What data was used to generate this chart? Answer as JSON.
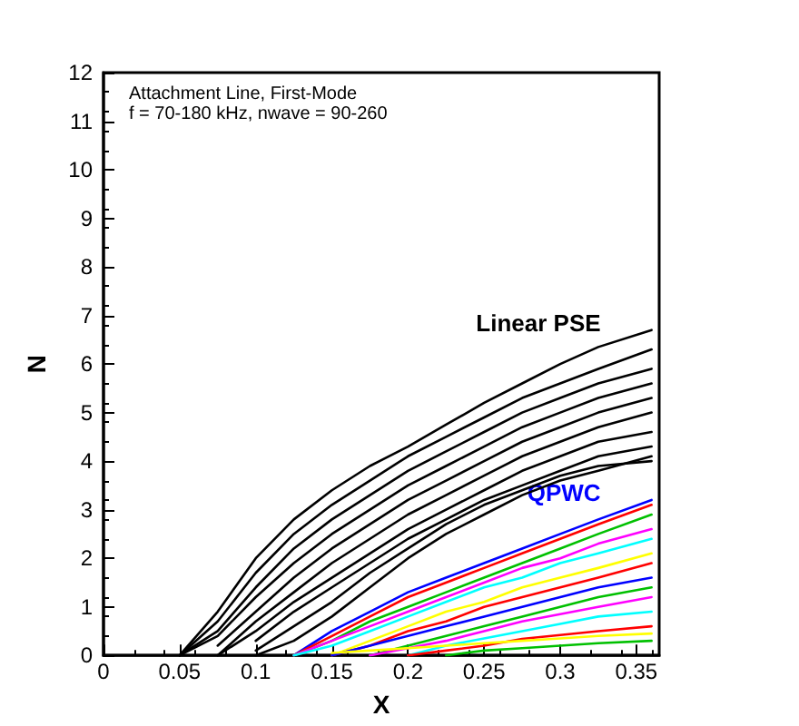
{
  "chart_data": {
    "type": "line",
    "title": "Attachment Line, First-Mode",
    "subtitle": "f = 70-180 kHz, nwave = 90-260",
    "xlabel": "X",
    "ylabel": "N",
    "x": [
      0.05,
      0.075,
      0.1,
      0.125,
      0.15,
      0.175,
      0.2,
      0.225,
      0.25,
      0.275,
      0.3,
      0.325,
      0.36
    ],
    "series": [
      {
        "name": "Linear PSE",
        "color": "#000000",
        "values": [
          0,
          0.9,
          2.0,
          2.8,
          3.4,
          3.9,
          4.3,
          4.75,
          5.2,
          5.6,
          6.0,
          6.35,
          6.7
        ]
      },
      {
        "color": "#000000",
        "values": [
          0,
          0.7,
          1.7,
          2.5,
          3.1,
          3.6,
          4.1,
          4.5,
          4.9,
          5.3,
          5.6,
          5.9,
          6.3
        ]
      },
      {
        "color": "#000000",
        "values": [
          0,
          0.5,
          1.4,
          2.2,
          2.8,
          3.3,
          3.8,
          4.2,
          4.6,
          5.0,
          5.3,
          5.6,
          5.9
        ]
      },
      {
        "color": "#000000",
        "values": [
          0,
          0.4,
          1.2,
          1.9,
          2.5,
          3.0,
          3.5,
          3.9,
          4.3,
          4.7,
          5.0,
          5.3,
          5.6
        ]
      },
      {
        "color": "#000000",
        "values": [
          null,
          0.2,
          0.9,
          1.6,
          2.2,
          2.7,
          3.2,
          3.6,
          4.0,
          4.4,
          4.7,
          5.0,
          5.3
        ]
      },
      {
        "color": "#000000",
        "values": [
          null,
          0,
          0.7,
          1.3,
          1.9,
          2.4,
          2.9,
          3.3,
          3.7,
          4.1,
          4.4,
          4.7,
          5.0
        ]
      },
      {
        "color": "#000000",
        "values": [
          null,
          0,
          0.5,
          1.1,
          1.6,
          2.1,
          2.6,
          3.0,
          3.4,
          3.8,
          4.1,
          4.4,
          4.6
        ]
      },
      {
        "color": "#000000",
        "values": [
          null,
          null,
          0.3,
          0.9,
          1.4,
          1.9,
          2.4,
          2.8,
          3.2,
          3.5,
          3.8,
          4.1,
          4.3
        ]
      },
      {
        "color": "#000000",
        "values": [
          null,
          null,
          0.1,
          0.6,
          1.1,
          1.7,
          2.2,
          2.7,
          3.1,
          3.4,
          3.7,
          3.9,
          4.0
        ]
      },
      {
        "color": "#000000",
        "values": [
          null,
          null,
          0,
          0.3,
          0.8,
          1.4,
          2.0,
          2.5,
          2.9,
          3.3,
          3.6,
          3.8,
          4.1
        ]
      },
      {
        "name": "QPWC",
        "color": "#0000ff",
        "values": [
          null,
          null,
          null,
          0,
          0.5,
          0.9,
          1.3,
          1.6,
          1.9,
          2.2,
          2.5,
          2.8,
          3.2
        ]
      },
      {
        "color": "#ff0000",
        "values": [
          null,
          null,
          null,
          0,
          0.4,
          0.8,
          1.2,
          1.5,
          1.8,
          2.1,
          2.4,
          2.7,
          3.1
        ]
      },
      {
        "color": "#00c000",
        "values": [
          null,
          null,
          null,
          0,
          0.3,
          0.7,
          1.0,
          1.3,
          1.6,
          1.9,
          2.2,
          2.5,
          2.9
        ]
      },
      {
        "color": "#ff00ff",
        "values": [
          null,
          null,
          null,
          0,
          0.3,
          0.6,
          0.9,
          1.2,
          1.5,
          1.8,
          2.0,
          2.3,
          2.6
        ]
      },
      {
        "color": "#00ffff",
        "values": [
          null,
          null,
          null,
          0,
          0.2,
          0.5,
          0.8,
          1.1,
          1.4,
          1.6,
          1.9,
          2.1,
          2.4
        ]
      },
      {
        "color": "#ffff00",
        "values": [
          null,
          null,
          null,
          null,
          0,
          0.3,
          0.6,
          0.9,
          1.1,
          1.4,
          1.6,
          1.8,
          2.1
        ]
      },
      {
        "color": "#ff0000",
        "values": [
          null,
          null,
          null,
          null,
          0,
          0.2,
          0.5,
          0.7,
          1.0,
          1.2,
          1.4,
          1.6,
          1.9
        ]
      },
      {
        "color": "#0000ff",
        "values": [
          null,
          null,
          null,
          null,
          0,
          0.2,
          0.4,
          0.6,
          0.8,
          1.0,
          1.2,
          1.4,
          1.6
        ]
      },
      {
        "color": "#00c000",
        "values": [
          null,
          null,
          null,
          null,
          null,
          0,
          0.2,
          0.4,
          0.6,
          0.8,
          1.0,
          1.2,
          1.4
        ]
      },
      {
        "color": "#ff00ff",
        "values": [
          null,
          null,
          null,
          null,
          null,
          0,
          0.15,
          0.3,
          0.5,
          0.7,
          0.85,
          1.0,
          1.2
        ]
      },
      {
        "color": "#00ffff",
        "values": [
          null,
          null,
          null,
          null,
          null,
          null,
          0,
          0.2,
          0.35,
          0.5,
          0.65,
          0.8,
          0.9
        ]
      },
      {
        "color": "#ff0000",
        "values": [
          null,
          null,
          null,
          null,
          null,
          null,
          0,
          0.1,
          0.2,
          0.34,
          0.42,
          0.5,
          0.6
        ]
      },
      {
        "color": "#00c000",
        "values": [
          null,
          null,
          null,
          null,
          null,
          null,
          null,
          0,
          0.1,
          0.15,
          0.2,
          0.25,
          0.3
        ]
      },
      {
        "color": "#ffff00",
        "values": [
          null,
          null,
          null,
          null,
          0.05,
          0.1,
          0.15,
          0.2,
          0.25,
          0.3,
          0.35,
          0.4,
          0.45
        ]
      }
    ],
    "xlim": [
      0,
      0.365
    ],
    "xticks": [
      0,
      0.05,
      0.1,
      0.15,
      0.2,
      0.25,
      0.3,
      0.35
    ],
    "ylim": [
      0,
      12
    ],
    "yticks": [
      0,
      1,
      2,
      3,
      4,
      5,
      6,
      7,
      8,
      9,
      10,
      11,
      12
    ],
    "grid": false,
    "legend": false,
    "marker": "none",
    "line_style": "solid"
  }
}
